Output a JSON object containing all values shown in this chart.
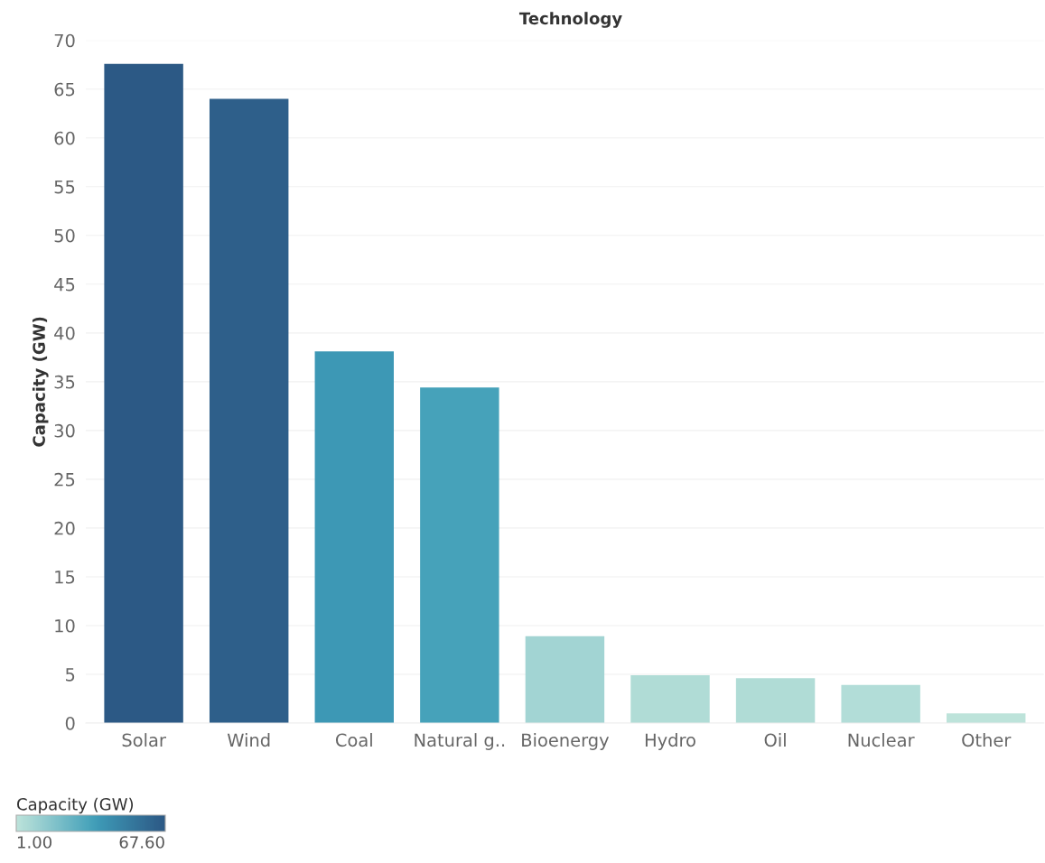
{
  "chart_data": {
    "type": "bar",
    "title": "Technology",
    "ylabel": "Capacity (GW)",
    "clabel": "Capacity (GW)",
    "categories": [
      "Solar",
      "Wind",
      "Coal",
      "Natural g..",
      "Bioenergy",
      "Hydro",
      "Oil",
      "Nuclear",
      "Other"
    ],
    "values": [
      67.6,
      64.0,
      38.1,
      34.4,
      8.9,
      4.9,
      4.6,
      3.9,
      1.0
    ],
    "colors": [
      "#2c5985",
      "#2e5f8a",
      "#3d98b5",
      "#46a2ba",
      "#a2d4d3",
      "#b0dcd6",
      "#b0dcd6",
      "#b2ddd8",
      "#bde3da"
    ],
    "ylim": [
      0,
      70
    ],
    "yticks": [
      0,
      5,
      10,
      15,
      20,
      25,
      30,
      35,
      40,
      45,
      50,
      55,
      60,
      65,
      70
    ],
    "clim": [
      1.0,
      67.6
    ],
    "cticks": [
      {
        "value": 1.0,
        "label": "1.00"
      },
      {
        "value": 67.6,
        "label": "67.60"
      }
    ],
    "grid": "y",
    "legend": false
  }
}
